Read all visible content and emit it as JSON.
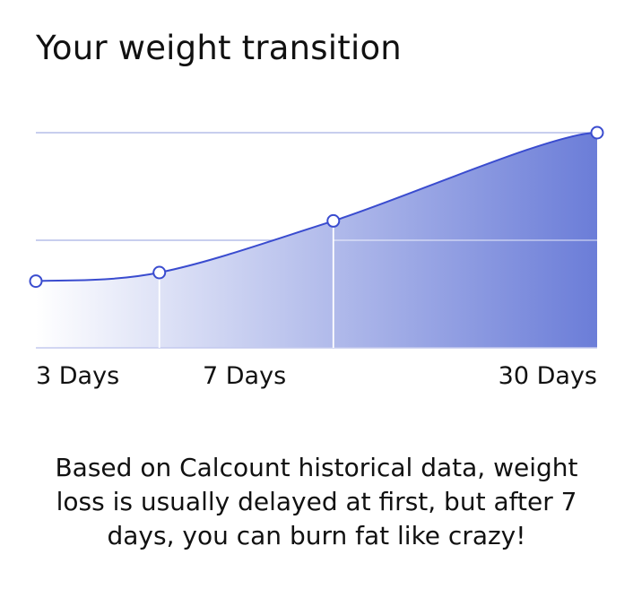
{
  "title": "Your weight transition",
  "caption": "Based on Calcount historical data, weight loss is usually delayed at first, but after 7 days, you can burn fat like crazy!",
  "colors": {
    "line": "#3a4ccf",
    "fill_start": "#ffffff",
    "fill_end": "#6b7dd8",
    "grid": "#b6bee8",
    "point_fill": "#ffffff",
    "baseline": "#c3c9ee"
  },
  "chart_data": {
    "type": "area",
    "title": "Your weight transition",
    "xlabel": "",
    "ylabel": "",
    "tick_labels": [
      "3 Days",
      "7 Days",
      "30 Days"
    ],
    "series": [
      {
        "points": [
          {
            "x": 0,
            "y": 0.31
          },
          {
            "x": 0.22,
            "y": 0.35
          },
          {
            "x": 0.53,
            "y": 0.59
          },
          {
            "x": 1.0,
            "y": 1.0
          }
        ]
      }
    ],
    "ylim": [
      0,
      1
    ],
    "xlim": [
      0,
      1
    ],
    "grid": true,
    "legend": "none"
  }
}
